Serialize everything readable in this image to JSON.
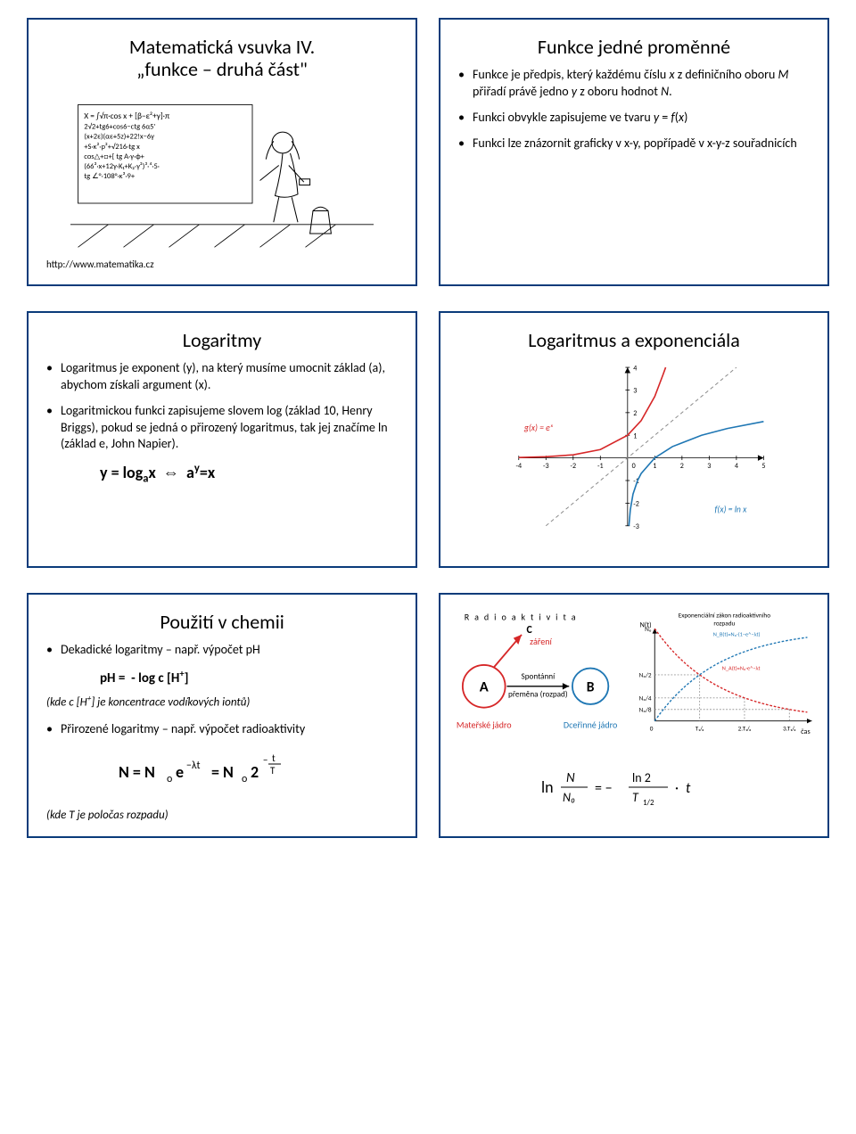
{
  "slide1": {
    "title_line1": "Matematická vsuvka IV.",
    "title_line2": "„funkce – druhá část\"",
    "source": "http://www.matematika.cz"
  },
  "slide2": {
    "title": "Funkce jedné proměnné",
    "bullets": [
      "Funkce je předpis, který každému číslu x z definičního oboru M přiřadí právě jedno y z oboru hodnot N.",
      "Funkci obvykle zapisujeme ve tvaru y = f(x)",
      "Funkci lze znázornit graficky v x-y, popřípadě v x-y-z souřadnicích"
    ]
  },
  "slide3": {
    "title": "Logaritmy",
    "bullets": [
      "Logaritmus je exponent (y), na který musíme umocnit základ (a), abychom získali argument (x).",
      "Logaritmickou funkci zapisujeme slovem log (základ 10, Henry Briggs), pokud se jedná o přirozený logaritmus, tak jej značíme ln (základ e, John Napier)."
    ],
    "formula": "y = logₐx  ⇔  aʸ=x"
  },
  "slide4": {
    "title": "Logaritmus a exponenciála",
    "chart": {
      "type": "line",
      "xlim": [
        -4,
        5
      ],
      "ylim": [
        -3,
        4
      ],
      "xtick_step": 1,
      "ytick_step": 1,
      "background_color": "#ffffff",
      "grid_color": "#d0d0d0",
      "axis_color": "#000000",
      "series": [
        {
          "label": "g(x) = eˣ",
          "color": "#d62728",
          "stroke_width": 2,
          "x": [
            -4,
            -3,
            -2,
            -1,
            0,
            0.5,
            1,
            1.3,
            1.4
          ],
          "y": [
            0.018,
            0.05,
            0.135,
            0.368,
            1,
            1.649,
            2.718,
            3.669,
            4
          ]
        },
        {
          "label": "f(x) = ln x",
          "color": "#1f77b4",
          "stroke_width": 2,
          "x": [
            0.05,
            0.1,
            0.2,
            0.368,
            0.5,
            1,
            1.649,
            2.718,
            3.669,
            5
          ],
          "y": [
            -3,
            -2.3,
            -1.6,
            -1,
            -0.69,
            0,
            0.5,
            1,
            1.3,
            1.609
          ]
        },
        {
          "label": "y = x",
          "color": "#888888",
          "stroke_width": 1.2,
          "dash": "5,4",
          "x": [
            -3,
            4
          ],
          "y": [
            -3,
            4
          ]
        }
      ],
      "label_exp": "g(x) = eˣ",
      "label_exp_color": "#d62728",
      "label_ln": "f(x) = ln x",
      "label_ln_color": "#1f77b4"
    }
  },
  "slide5": {
    "title": "Použití v chemii",
    "bullet1": "Dekadické logaritmy – např. výpočet pH",
    "formula_ph": "pH =  - log c [H⁺]",
    "note_ph": "(kde c [H⁺] je koncentrace vodíkových iontů)",
    "bullet2": "Přirozené logaritmy – např. výpočet radioaktivity",
    "note_T": "(kde T je poločas rozpadu)",
    "formula_decay": "N = N₀e⁻λt = N₀2⁻ᵗ/ᵀ",
    "decay_img_label": "N = N₀ e⁻λt = N₀ 2"
  },
  "slide6": {
    "diagram": {
      "title": "R a d i o a k t i v i t a",
      "c_label": "C",
      "zareni": "záření",
      "nodeA": "A",
      "nodeB": "B",
      "spontanni": "Spontánní",
      "premena": "přeměna (rozpad)",
      "materske": "Mateřské jádro",
      "dcerinne": "Dceřinné jádro",
      "colorA": "#d62728",
      "colorB": "#1f77b4",
      "colorC": "#d62728"
    },
    "chart": {
      "type": "decay",
      "title": "Exponenciální zákon radioaktivního rozpadu",
      "xlabel": "čas",
      "ylabel": "N(t)",
      "background_color": "#ffffff",
      "axis_color": "#000000",
      "curveA_color": "#d62728",
      "curveB_color": "#1f77b4",
      "curveA_dash": "3,2",
      "curveB_dash": "3,2",
      "N0_label": "N₀",
      "half_label": "N₀/2",
      "quarter_label": "N₀/4",
      "eighth_label": "N₀/8",
      "t_labels": [
        "T₁/₂",
        "2.T₁/₂",
        "3.T₁/₂"
      ],
      "Nb_formula": "N_B(t) = N₀·(1 − e⁻λ·t)",
      "Na_formula": "N_A(t) = N₀·e⁻λ·t",
      "Nb_formula2": "= N₀·(1 − 2⁻ᵗ·ln2/T₁/₂)",
      "Na_formula2": "= N₀·2⁻ᵗ·ln2/T₁/₂",
      "bottom_formula": "ln (N/N₀) = − (ln 2 / T₁/₂) · t"
    }
  }
}
